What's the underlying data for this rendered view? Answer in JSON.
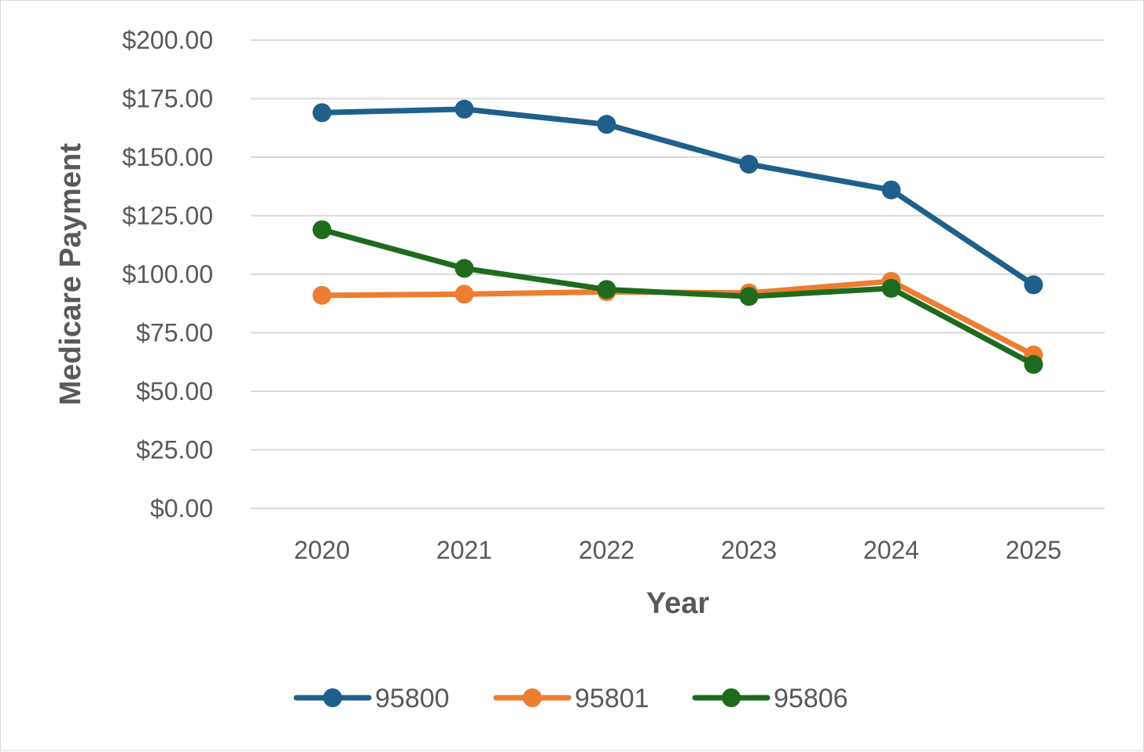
{
  "chart_data": {
    "type": "line",
    "title": "",
    "xlabel": "Year",
    "ylabel": "Medicare Payment",
    "categories": [
      "2020",
      "2021",
      "2022",
      "2023",
      "2024",
      "2025"
    ],
    "ylim": [
      0,
      200
    ],
    "yticks": [
      0,
      25,
      50,
      75,
      100,
      125,
      150,
      175,
      200
    ],
    "ytick_labels": [
      "$0.00",
      "$25.00",
      "$50.00",
      "$75.00",
      "$100.00",
      "$125.00",
      "$150.00",
      "$175.00",
      "$200.00"
    ],
    "grid": true,
    "legend": "bottom",
    "series": [
      {
        "name": "95800",
        "color": "#1f5f8b",
        "values": [
          169.0,
          170.5,
          164.0,
          147.0,
          136.0,
          95.5
        ]
      },
      {
        "name": "95801",
        "color": "#ed7d31",
        "values": [
          91.0,
          91.5,
          92.5,
          92.0,
          97.0,
          65.5
        ]
      },
      {
        "name": "95806",
        "color": "#1e6b1e",
        "values": [
          119.0,
          102.5,
          93.5,
          90.5,
          94.0,
          61.5
        ]
      }
    ]
  }
}
